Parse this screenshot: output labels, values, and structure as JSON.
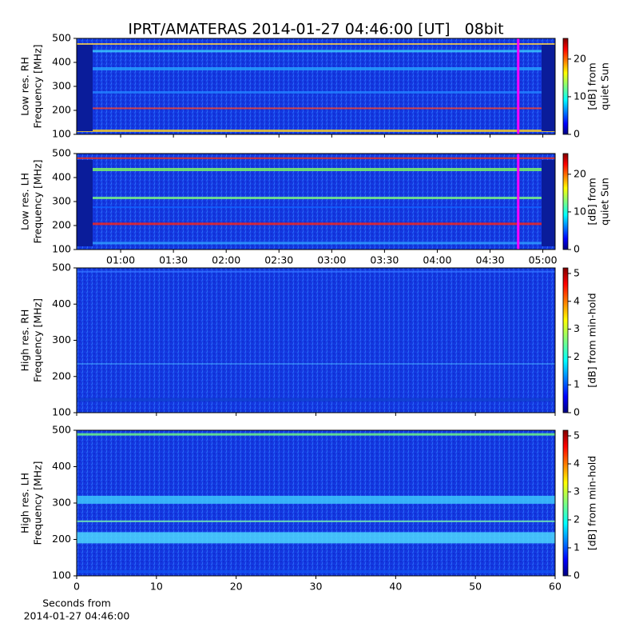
{
  "chart_data": [
    {
      "type": "heatmap",
      "title": "IPRT/AMATERAS 2014-01-27 04:46:00 [UT]   08bit",
      "ylabel": [
        "Low res. RH",
        "Frequency [MHz]"
      ],
      "ylim": [
        100,
        500
      ],
      "yticks": [
        100,
        200,
        300,
        400,
        500
      ],
      "xlim": [
        35,
        307
      ],
      "xticks": [
        60,
        90,
        120,
        150,
        180,
        210,
        240,
        270,
        300
      ],
      "marker": 286,
      "marker_color": "#ff00ff",
      "colorbar": {
        "label": [
          "[dB] from",
          "quiet Sun"
        ],
        "lim": [
          0,
          25.5
        ],
        "ticks": [
          0,
          10,
          20
        ],
        "colormap": "jet"
      }
    },
    {
      "type": "heatmap",
      "ylabel": [
        "Low res. LH",
        "Frequency [MHz]"
      ],
      "ylim": [
        100,
        500
      ],
      "yticks": [
        100,
        200,
        300,
        400,
        500
      ],
      "xlim": [
        35,
        307
      ],
      "xticks": [
        {
          "value": 60,
          "label": "01:00"
        },
        {
          "value": 90,
          "label": "01:30"
        },
        {
          "value": 120,
          "label": "02:00"
        },
        {
          "value": 150,
          "label": "02:30"
        },
        {
          "value": 180,
          "label": "03:00"
        },
        {
          "value": 210,
          "label": "03:30"
        },
        {
          "value": 240,
          "label": "04:00"
        },
        {
          "value": 270,
          "label": "04:30"
        },
        {
          "value": 300,
          "label": "05:00"
        }
      ],
      "marker": 286,
      "marker_color": "#ff00ff",
      "colorbar": {
        "label": [
          "[dB] from",
          "quiet Sun"
        ],
        "lim": [
          0,
          25.5
        ],
        "ticks": [
          0,
          10,
          20
        ],
        "colormap": "jet"
      }
    },
    {
      "type": "heatmap",
      "ylabel": [
        "High res. RH",
        "Frequency [MHz]"
      ],
      "ylim": [
        100,
        500
      ],
      "yticks": [
        100,
        200,
        300,
        400,
        500
      ],
      "xlim": [
        0,
        60
      ],
      "xticks": [
        0,
        10,
        20,
        30,
        40,
        50,
        60
      ],
      "colorbar": {
        "label": [
          "[dB] from min-hold"
        ],
        "lim": [
          0,
          5.2
        ],
        "ticks": [
          0,
          1,
          2,
          3,
          4,
          5
        ],
        "colormap": "jet"
      }
    },
    {
      "type": "heatmap",
      "ylabel": [
        "High res. LH",
        "Frequency [MHz]"
      ],
      "ylim": [
        100,
        500
      ],
      "yticks": [
        100,
        200,
        300,
        400,
        500
      ],
      "xlim": [
        0,
        60
      ],
      "xticks": [
        0,
        10,
        20,
        30,
        40,
        50,
        60
      ],
      "xtick_labels": true,
      "xlabel": [
        "Seconds from",
        "2014-01-27 04:46:00"
      ],
      "colorbar": {
        "label": [
          "[dB] from min-hold"
        ],
        "lim": [
          0,
          5.2
        ],
        "ticks": [
          0,
          1,
          2,
          3,
          4,
          5
        ],
        "colormap": "jet"
      }
    }
  ]
}
